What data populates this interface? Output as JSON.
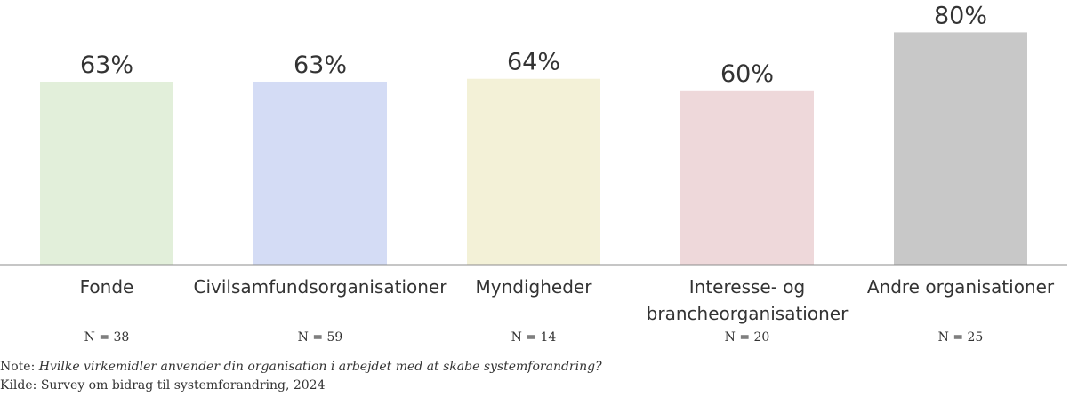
{
  "chart_data": {
    "type": "bar",
    "categories": [
      "Fonde",
      "Civilsamfundsorganisationer",
      "Myndigheder",
      "Interesse- og\nbrancheorganisationer",
      "Andre organisationer"
    ],
    "values": [
      63,
      63,
      64,
      60,
      80
    ],
    "value_labels": [
      "63%",
      "63%",
      "64%",
      "60%",
      "80%"
    ],
    "n_labels": [
      "N = 38",
      "N = 59",
      "N = 14",
      "N = 20",
      "N = 25"
    ],
    "colors": [
      "#e2efda",
      "#d4dcf5",
      "#f3f1d7",
      "#eed8da",
      "#c8c8c8"
    ],
    "ylim": [
      0,
      100
    ],
    "grid": false,
    "legend": "none"
  },
  "footer": {
    "note_prefix": "Note: ",
    "note_question": "Hvilke virkemidler anvender din organisation i arbejdet med at skabe systemforandring?",
    "source": "Kilde: Survey om bidrag til systemforandring, 2024"
  }
}
